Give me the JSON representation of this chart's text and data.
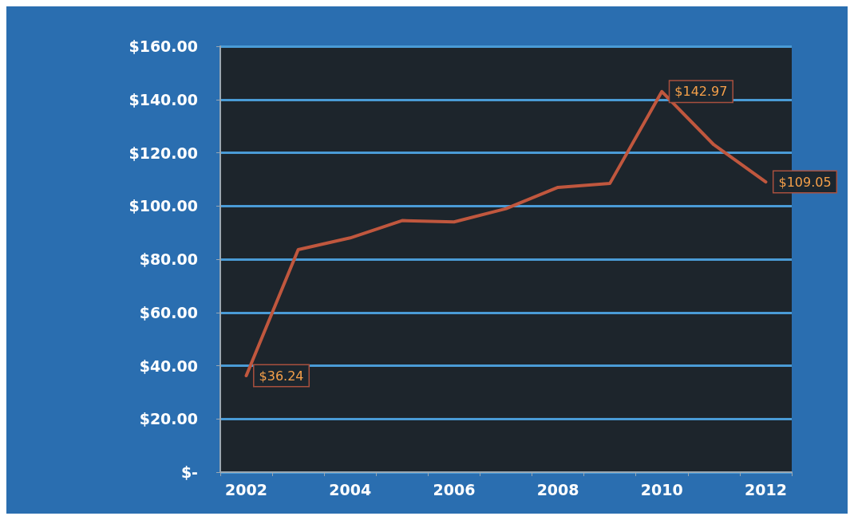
{
  "chart_data": {
    "type": "line",
    "categories": [
      "2002",
      null,
      "2004",
      null,
      "2006",
      null,
      "2008",
      null,
      "2010",
      null,
      "2012"
    ],
    "series": [
      {
        "color": "#c0573e",
        "values": [
          36.24,
          83.6,
          88,
          94.5,
          94,
          99,
          107,
          108.5,
          142.97,
          123,
          109.05
        ],
        "value_labels": [
          "$36.24",
          null,
          null,
          null,
          null,
          null,
          null,
          null,
          "$142.97",
          null,
          "$109.05"
        ]
      }
    ],
    "ylim": [
      0,
      160
    ],
    "yticks": [
      {
        "value": 0,
        "label": "$-"
      },
      {
        "value": 20,
        "label": "$20.00"
      },
      {
        "value": 40,
        "label": "$40.00"
      },
      {
        "value": 60,
        "label": "$60.00"
      },
      {
        "value": 80,
        "label": "$80.00"
      },
      {
        "value": 100,
        "label": "$100.00"
      },
      {
        "value": 120,
        "label": "$120.00"
      },
      {
        "value": 140,
        "label": "$140.00"
      },
      {
        "value": 160,
        "label": "$160.00"
      }
    ],
    "grid": "y",
    "marker": "none",
    "line_style": "solid"
  }
}
